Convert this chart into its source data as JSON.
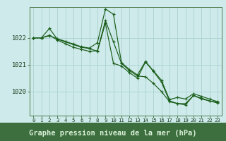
{
  "bg_color": "#ceeaea",
  "grid_color": "#b0d4d4",
  "line_color": "#1a5e1a",
  "marker_color": "#1a5e1a",
  "xlabel": "Graphe pression niveau de la mer (hPa)",
  "xlabel_fontsize": 7.5,
  "xlabel_color": "#1a3a1a",
  "xlabel_bg": "#5a8a5a",
  "xtick_labels": [
    "0",
    "1",
    "2",
    "3",
    "4",
    "5",
    "6",
    "7",
    "8",
    "9",
    "10",
    "11",
    "12",
    "13",
    "14",
    "15",
    "16",
    "17",
    "18",
    "19",
    "20",
    "21",
    "22",
    "23"
  ],
  "ytick_values": [
    1020,
    1021,
    1022
  ],
  "ylim": [
    1019.1,
    1023.15
  ],
  "xlim": [
    -0.5,
    23.5
  ],
  "series": [
    [
      1022.0,
      1022.0,
      1022.35,
      1021.95,
      1021.85,
      1021.75,
      1021.65,
      1021.6,
      1021.5,
      1022.55,
      1021.05,
      1020.95,
      1020.7,
      1020.5,
      1021.1,
      1020.75,
      1020.35,
      1019.65,
      1019.55,
      1019.55,
      1019.85,
      1019.75,
      1019.65,
      1019.6
    ],
    [
      1022.0,
      1022.0,
      1022.1,
      1021.92,
      1021.78,
      1021.65,
      1021.57,
      1021.5,
      1021.52,
      1022.65,
      1021.85,
      1021.05,
      1020.78,
      1020.58,
      1020.55,
      1020.3,
      1020.0,
      1019.62,
      1019.55,
      1019.5,
      1019.85,
      1019.72,
      1019.65,
      1019.57
    ],
    [
      1022.0,
      1022.0,
      1022.08,
      1021.97,
      1021.87,
      1021.77,
      1021.67,
      1021.62,
      1021.82,
      1023.08,
      1022.88,
      1021.08,
      1020.82,
      1020.62,
      1021.12,
      1020.77,
      1020.42,
      1019.7,
      1019.78,
      1019.72,
      1019.92,
      1019.82,
      1019.72,
      1019.62
    ]
  ]
}
